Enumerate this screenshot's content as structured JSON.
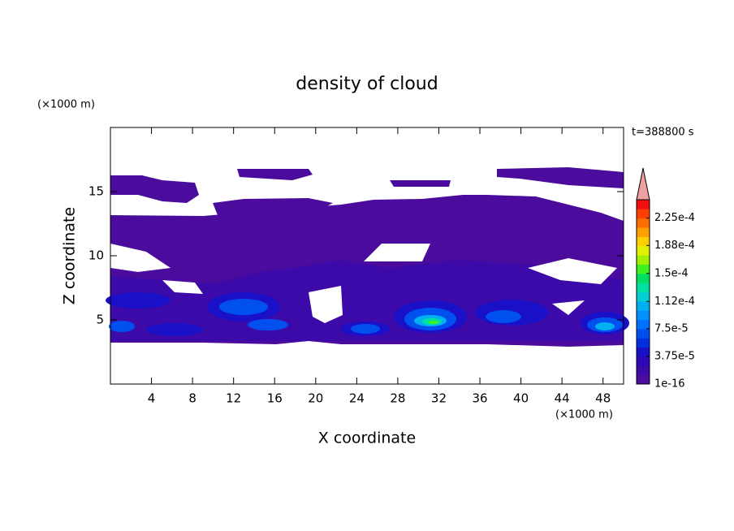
{
  "chart_data": {
    "type": "contour",
    "title": "density of cloud",
    "x_label": "X coordinate",
    "y_label": "Z coordinate",
    "x_unit": "(×1000 m)",
    "y_unit": "(×1000 m)",
    "time_label": "t=388800 s",
    "xlim": [
      0,
      50
    ],
    "xticks": [
      4,
      8,
      12,
      16,
      20,
      24,
      28,
      32,
      36,
      40,
      44,
      48
    ],
    "ylim": [
      0,
      20
    ],
    "yticks": [
      5,
      10,
      15
    ],
    "clim": [
      1e-16,
      0.00025
    ],
    "cticks": [
      1e-16,
      {
        "value": 3.75e-05,
        "label": "3.75e-5"
      },
      {
        "value": 7.5e-05,
        "label": "7.5e-5"
      },
      {
        "value": 0.000112,
        "label": "1.12e-4"
      },
      {
        "value": 0.00015,
        "label": "1.5e-4"
      },
      {
        "value": 0.000188,
        "label": "1.88e-4"
      },
      {
        "value": 0.000225,
        "label": "2.25e-4"
      }
    ],
    "colors": [
      "#4b0c9e",
      "#3c0aa8",
      "#2c08b8",
      "#1a10c8",
      "#0030e0",
      "#0050f0",
      "#0070ff",
      "#0090ff",
      "#00b0f0",
      "#00d0d0",
      "#00e0a0",
      "#00e060",
      "#40f020",
      "#a0f000",
      "#e0f000",
      "#ffd000",
      "#ffa000",
      "#ff7000",
      "#ff4000",
      "#f01010"
    ],
    "extend_color": "#f0a0a0"
  }
}
